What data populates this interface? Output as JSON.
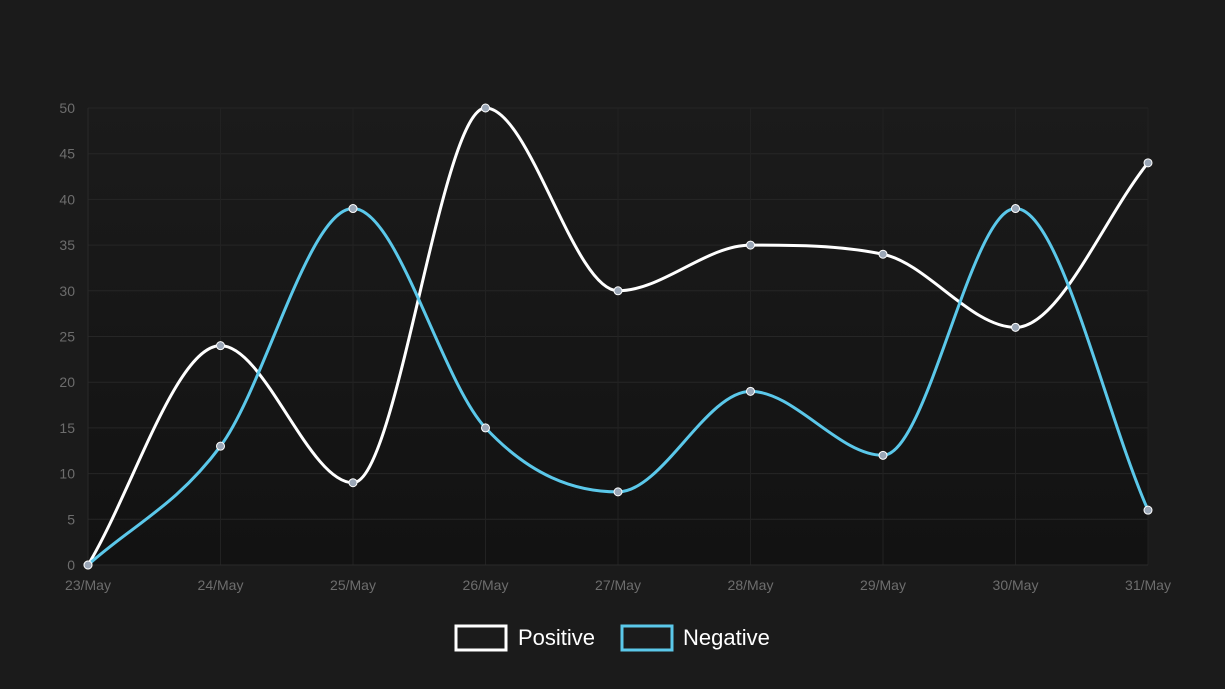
{
  "chart_data": {
    "type": "line",
    "title": "",
    "xlabel": "",
    "ylabel": "",
    "categories": [
      "23/May",
      "24/May",
      "25/May",
      "26/May",
      "27/May",
      "28/May",
      "29/May",
      "30/May",
      "31/May"
    ],
    "ylim": [
      0,
      50
    ],
    "yticks": [
      0,
      5,
      10,
      15,
      20,
      25,
      30,
      35,
      40,
      45,
      50
    ],
    "grid": true,
    "legend": {
      "position": "bottom"
    },
    "series": [
      {
        "name": "Positive",
        "color": "#ffffff",
        "values": [
          0,
          24,
          9,
          50,
          30,
          35,
          34,
          26,
          44
        ]
      },
      {
        "name": "Negative",
        "color": "#5bc8ea",
        "values": [
          0,
          13,
          39,
          15,
          8,
          19,
          12,
          39,
          6
        ]
      }
    ],
    "point_fill": "#9aa6b6",
    "background": "#1b1b1b"
  }
}
